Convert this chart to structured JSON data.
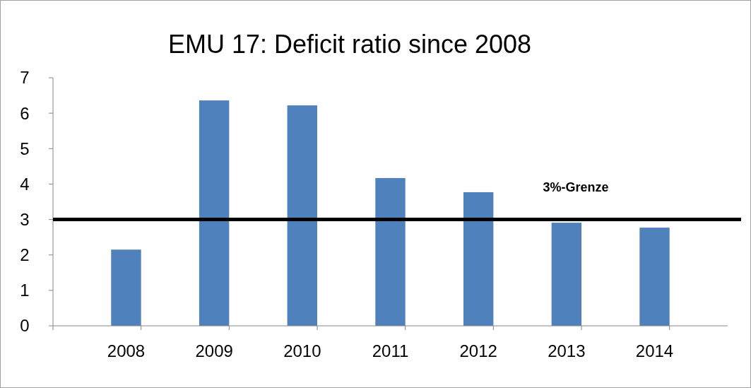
{
  "chart_data": {
    "type": "bar",
    "title": "EMU 17: Deficit ratio since 2008",
    "categories": [
      "2008",
      "2009",
      "2010",
      "2011",
      "2012",
      "2013",
      "2014"
    ],
    "values": [
      2.15,
      6.36,
      6.22,
      4.17,
      3.77,
      2.91,
      2.77
    ],
    "color": "#4f81bd",
    "ylim": [
      0,
      7
    ],
    "yticks": [
      0,
      1,
      2,
      3,
      4,
      5,
      6,
      7
    ],
    "grid": false,
    "ref_lines": [
      {
        "axis": "y",
        "value": 3,
        "label": "3%-Grenze",
        "color": "#000000"
      }
    ]
  }
}
